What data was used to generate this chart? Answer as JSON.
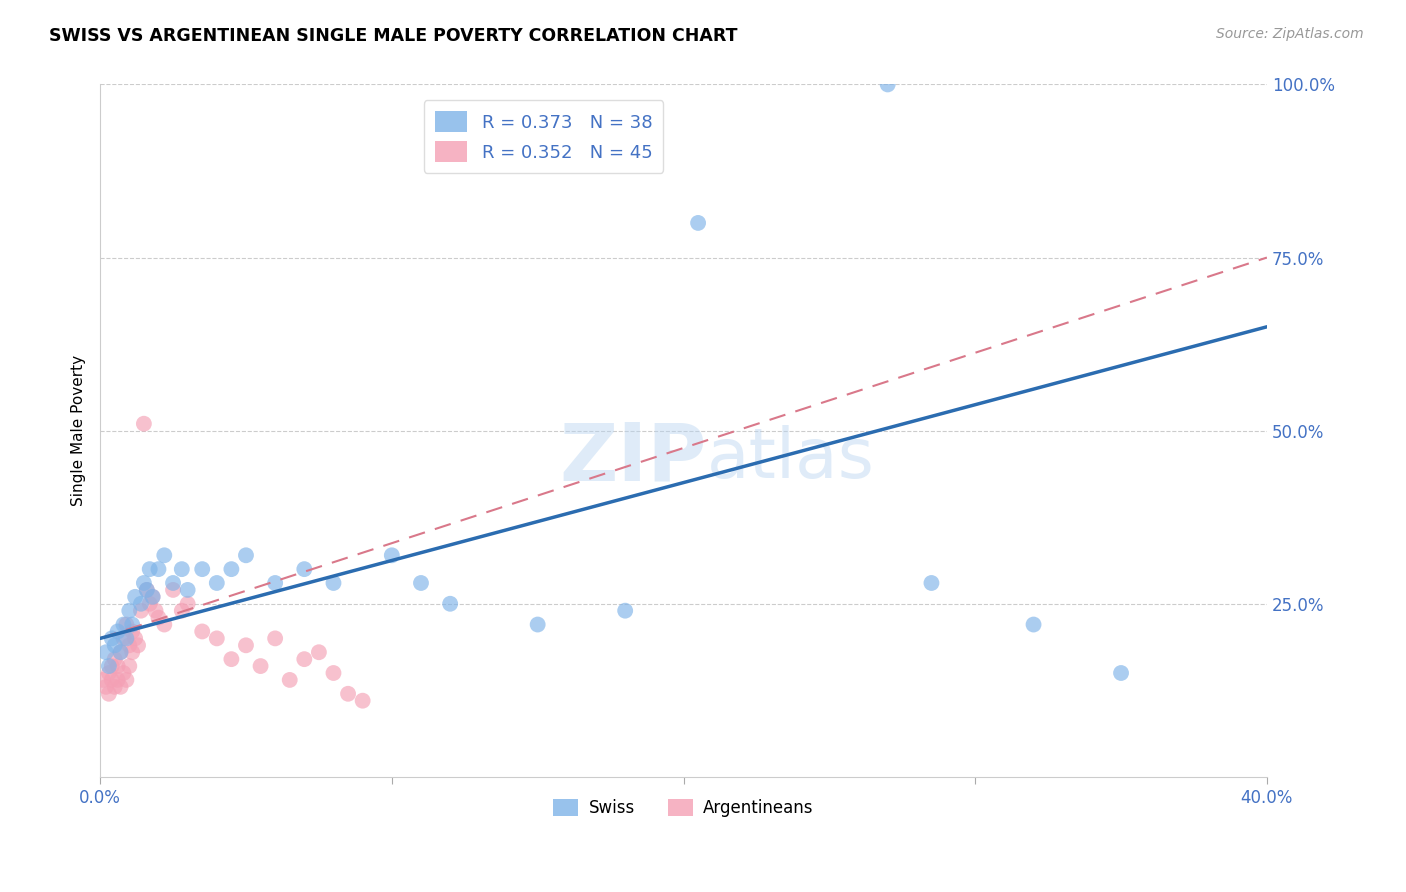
{
  "title": "SWISS VS ARGENTINEAN SINGLE MALE POVERTY CORRELATION CHART",
  "source": "Source: ZipAtlas.com",
  "ylabel": "Single Male Poverty",
  "legend_swiss": "R = 0.373   N = 38",
  "legend_arg": "R = 0.352   N = 45",
  "legend_label_swiss": "Swiss",
  "legend_label_arg": "Argentineans",
  "swiss_color": "#7EB3E8",
  "arg_color": "#F4A0B5",
  "swiss_line_color": "#2B6CB0",
  "arg_line_color": "#D9788A",
  "watermark_zip": "ZIP",
  "watermark_atlas": "atlas",
  "swiss_x": [
    0.2,
    0.3,
    0.4,
    0.5,
    0.6,
    0.7,
    0.8,
    0.9,
    1.0,
    1.1,
    1.2,
    1.4,
    1.5,
    1.6,
    1.7,
    1.8,
    2.0,
    2.2,
    2.5,
    2.8,
    3.0,
    3.5,
    4.0,
    4.5,
    5.0,
    6.0,
    7.0,
    8.0,
    10.0,
    11.0,
    12.0,
    15.0,
    18.0,
    20.5,
    27.0,
    28.5,
    32.0,
    35.0
  ],
  "swiss_y": [
    18,
    16,
    20,
    19,
    21,
    18,
    22,
    20,
    24,
    22,
    26,
    25,
    28,
    27,
    30,
    26,
    30,
    32,
    28,
    30,
    27,
    30,
    28,
    30,
    32,
    28,
    30,
    28,
    32,
    28,
    25,
    22,
    24,
    80,
    100,
    28,
    22,
    15
  ],
  "arg_x": [
    0.1,
    0.2,
    0.3,
    0.3,
    0.4,
    0.4,
    0.5,
    0.5,
    0.6,
    0.6,
    0.7,
    0.7,
    0.8,
    0.8,
    0.9,
    0.9,
    1.0,
    1.0,
    1.1,
    1.1,
    1.2,
    1.3,
    1.4,
    1.5,
    1.6,
    1.7,
    1.8,
    1.9,
    2.0,
    2.2,
    2.5,
    2.8,
    3.0,
    3.5,
    4.0,
    4.5,
    5.0,
    5.5,
    6.0,
    6.5,
    7.0,
    7.5,
    8.0,
    8.5,
    9.0
  ],
  "arg_y": [
    14,
    13,
    15,
    12,
    14,
    16,
    13,
    17,
    14,
    16,
    13,
    18,
    15,
    20,
    14,
    22,
    16,
    19,
    18,
    21,
    20,
    19,
    24,
    51,
    27,
    25,
    26,
    24,
    23,
    22,
    27,
    24,
    25,
    21,
    20,
    17,
    19,
    16,
    20,
    14,
    17,
    18,
    15,
    12,
    11
  ],
  "swiss_line_x": [
    0,
    40
  ],
  "swiss_line_y": [
    20,
    65
  ],
  "arg_line_x": [
    0,
    40
  ],
  "arg_line_y": [
    20,
    75
  ],
  "xlim": [
    0,
    40
  ],
  "ylim": [
    0,
    100
  ],
  "xtick_vals": [
    0,
    10,
    20,
    30,
    40
  ],
  "xtick_labels": [
    "0.0%",
    "",
    "",
    "",
    "40.0%"
  ],
  "ytick_vals": [
    0,
    25,
    50,
    75,
    100
  ],
  "ytick_labels": [
    "",
    "25.0%",
    "50.0%",
    "75.0%",
    "100.0%"
  ]
}
